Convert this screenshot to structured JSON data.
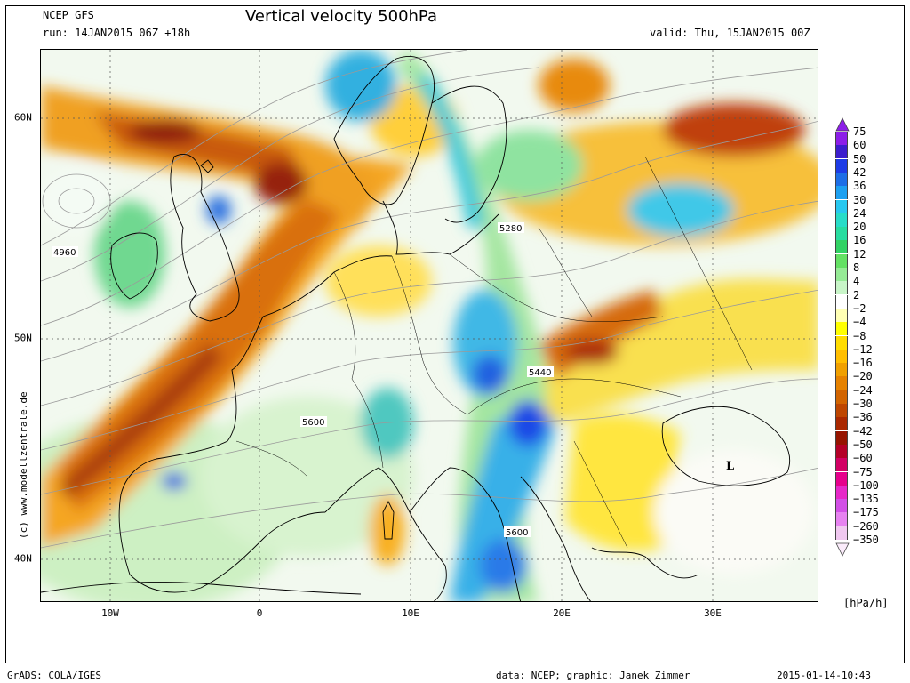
{
  "header": {
    "model": "NCEP GFS",
    "run": "run: 14JAN2015 06Z +18h",
    "title": "Vertical velocity 500hPa",
    "valid": "valid: Thu, 15JAN2015 00Z"
  },
  "footer": {
    "left": "GrADS: COLA/IGES",
    "center": "data: NCEP; graphic: Janek Zimmer",
    "right": "2015-01-14-10:43"
  },
  "credit": "(c) www.modellzentrale.de",
  "axes": {
    "lon_labels": [
      "10W",
      "0",
      "10E",
      "20E",
      "30E"
    ],
    "lat_labels": [
      "60N",
      "50N",
      "40N"
    ]
  },
  "map": {
    "contour_labels": [
      "4960",
      "5280",
      "5440",
      "5600",
      "5600"
    ],
    "low_marker": "L"
  },
  "legend": {
    "unit": "[hPa/h]",
    "labels": [
      "75",
      "60",
      "50",
      "42",
      "36",
      "30",
      "24",
      "20",
      "16",
      "12",
      "8",
      "4",
      "2",
      "−2",
      "−4",
      "−8",
      "−12",
      "−16",
      "−20",
      "−24",
      "−30",
      "−36",
      "−42",
      "−50",
      "−60",
      "−75",
      "−100",
      "−135",
      "−175",
      "−260",
      "−350"
    ],
    "colors": [
      "#8c1ee8",
      "#3c1ecd",
      "#1e3ce6",
      "#1e6ee6",
      "#1ea0f0",
      "#28c8f0",
      "#28dcc8",
      "#28dca0",
      "#32d264",
      "#64e164",
      "#96eb96",
      "#c8f5c8",
      "#ffffff",
      "#ffffb4",
      "#ffff00",
      "#ffdc00",
      "#ffbe00",
      "#f0a000",
      "#e68200",
      "#d26400",
      "#be4600",
      "#aa2800",
      "#961400",
      "#b40028",
      "#d20064",
      "#e6008c",
      "#e628c8",
      "#d250e6",
      "#e682f0",
      "#f0c8f0"
    ]
  }
}
